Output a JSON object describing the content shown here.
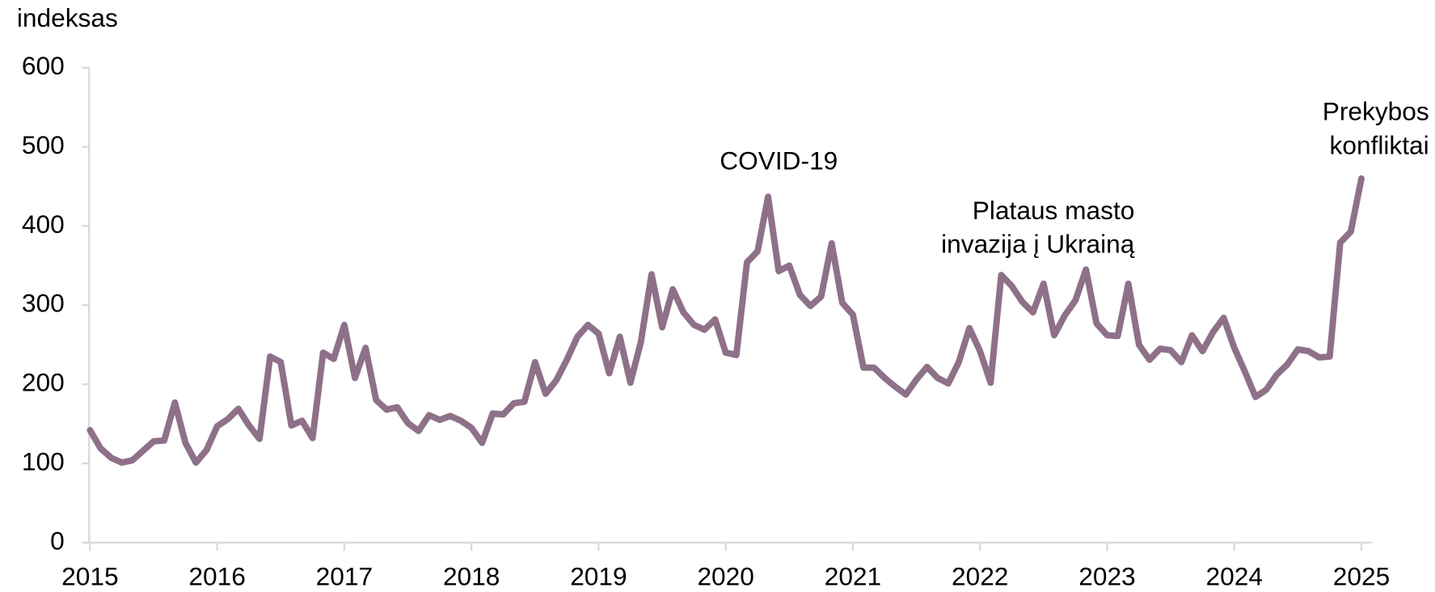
{
  "chart_data": {
    "type": "line",
    "y_label": "indeksas",
    "categories": [
      "2015",
      null,
      null,
      null,
      null,
      null,
      null,
      null,
      null,
      null,
      null,
      null,
      "2016",
      null,
      null,
      null,
      null,
      null,
      null,
      null,
      null,
      null,
      null,
      null,
      "2017",
      null,
      null,
      null,
      null,
      null,
      null,
      null,
      null,
      null,
      null,
      null,
      "2018",
      null,
      null,
      null,
      null,
      null,
      null,
      null,
      null,
      null,
      null,
      null,
      "2019",
      null,
      null,
      null,
      null,
      null,
      null,
      null,
      null,
      null,
      null,
      null,
      "2020",
      null,
      null,
      null,
      null,
      null,
      null,
      null,
      null,
      null,
      null,
      null,
      "2021",
      null,
      null,
      null,
      null,
      null,
      null,
      null,
      null,
      null,
      null,
      null,
      "2022",
      null,
      null,
      null,
      null,
      null,
      null,
      null,
      null,
      null,
      null,
      null,
      "2023",
      null,
      null,
      null,
      null,
      null,
      null,
      null,
      null,
      null,
      null,
      null,
      "2024",
      null,
      null,
      null,
      null,
      null,
      null,
      null,
      null,
      null,
      null,
      null,
      "2025"
    ],
    "series": [
      {
        "color": "#8e7189",
        "values": [
          142,
          119,
          107,
          101,
          104,
          116,
          128,
          129,
          177,
          126,
          101,
          117,
          147,
          156,
          169,
          148,
          131,
          235,
          228,
          148,
          154,
          132,
          240,
          232,
          275,
          208,
          246,
          180,
          168,
          171,
          151,
          141,
          161,
          155,
          160,
          154,
          145,
          126,
          163,
          162,
          176,
          178,
          228,
          188,
          205,
          231,
          260,
          275,
          264,
          214,
          260,
          202,
          254,
          339,
          272,
          320,
          291,
          275,
          269,
          282,
          240,
          237,
          354,
          368,
          437,
          343,
          350,
          313,
          299,
          311,
          378,
          303,
          288,
          221,
          221,
          208,
          197,
          187,
          206,
          222,
          208,
          201,
          228,
          271,
          242,
          202,
          338,
          324,
          304,
          291,
          327,
          262,
          287,
          306,
          345,
          277,
          262,
          261,
          327,
          250,
          231,
          245,
          243,
          228,
          262,
          242,
          266,
          284,
          246,
          216,
          184,
          193,
          212,
          225,
          244,
          242,
          234,
          235,
          379,
          393,
          460
        ]
      }
    ],
    "ylim": [
      0,
      600
    ],
    "yticks": [
      0,
      100,
      200,
      300,
      400,
      500,
      600
    ],
    "annotations": [
      {
        "lines": [
          "COVID-19"
        ]
      },
      {
        "lines": [
          "Plataus masto",
          "invazija į Ukrainą"
        ]
      },
      {
        "lines": [
          "Prekybos",
          "konfliktai"
        ]
      }
    ]
  }
}
